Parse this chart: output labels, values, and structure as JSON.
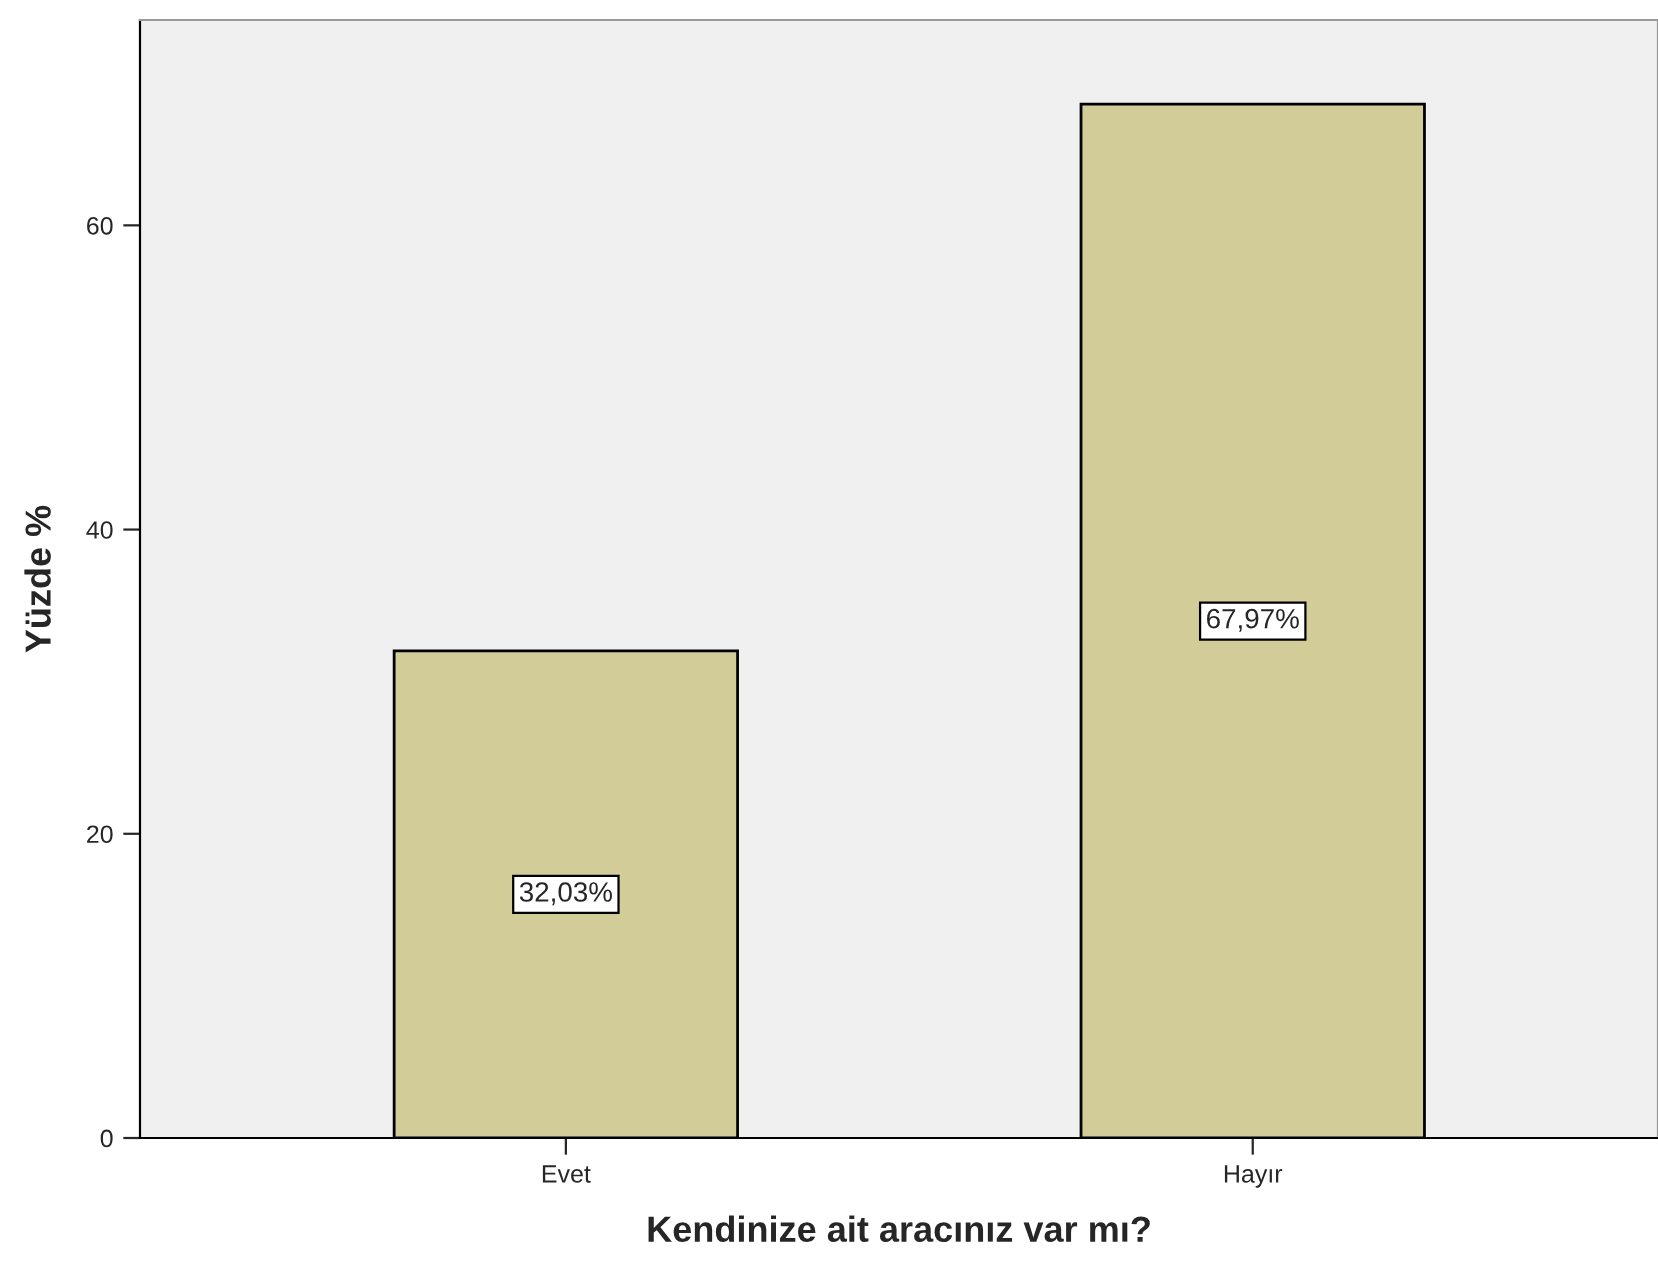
{
  "chart_data": {
    "type": "bar",
    "xlabel": "Kendinize ait aracınız var mı?",
    "ylabel": "Yüzde %",
    "categories": [
      "Evet",
      "Hayır"
    ],
    "values": [
      32.03,
      67.97
    ],
    "value_labels": [
      "32,03%",
      "67,97%"
    ],
    "color": "#d2cd98",
    "ylim": [
      0,
      73.5
    ],
    "yticks": [
      0,
      20,
      40,
      60
    ],
    "grid": false
  }
}
